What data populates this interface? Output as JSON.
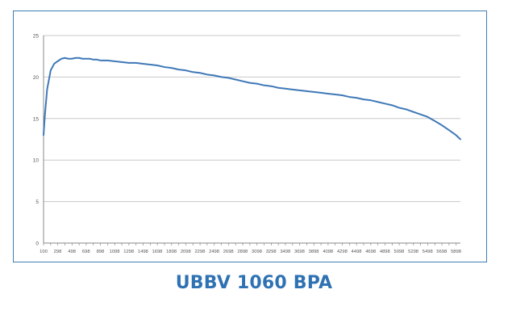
{
  "caption": "UBBV 1060 BPA",
  "chart_data": {
    "type": "line",
    "title": "",
    "xlabel": "",
    "ylabel": "",
    "ylim": [
      0,
      25
    ],
    "yticks": [
      0,
      5,
      10,
      15,
      20,
      25
    ],
    "grid": true,
    "line_color": "#3f78b8",
    "categories": [
      "100",
      "298",
      "498",
      "698",
      "898",
      "1098",
      "1298",
      "1498",
      "1698",
      "1898",
      "2098",
      "2298",
      "2498",
      "2698",
      "2898",
      "3098",
      "3298",
      "3498",
      "3698",
      "3898",
      "4098",
      "4298",
      "4498",
      "4698",
      "4898",
      "5098",
      "5298",
      "5498",
      "5698",
      "5898"
    ],
    "x": [
      100,
      120,
      150,
      200,
      250,
      298,
      350,
      400,
      450,
      498,
      550,
      600,
      650,
      698,
      750,
      800,
      850,
      898,
      950,
      1000,
      1098,
      1200,
      1298,
      1400,
      1498,
      1600,
      1698,
      1800,
      1898,
      2000,
      2098,
      2200,
      2298,
      2400,
      2498,
      2600,
      2698,
      2800,
      2898,
      3000,
      3098,
      3200,
      3298,
      3400,
      3498,
      3600,
      3698,
      3800,
      3898,
      4000,
      4098,
      4200,
      4298,
      4400,
      4498,
      4600,
      4698,
      4800,
      4898,
      5000,
      5098,
      5200,
      5298,
      5400,
      5498,
      5600,
      5698,
      5800,
      5898,
      5960
    ],
    "values": [
      13.0,
      15.5,
      18.5,
      20.8,
      21.6,
      21.9,
      22.2,
      22.3,
      22.2,
      22.2,
      22.3,
      22.3,
      22.2,
      22.2,
      22.2,
      22.1,
      22.1,
      22.0,
      22.0,
      22.0,
      21.9,
      21.8,
      21.7,
      21.7,
      21.6,
      21.5,
      21.4,
      21.2,
      21.1,
      20.9,
      20.8,
      20.6,
      20.5,
      20.3,
      20.2,
      20.0,
      19.9,
      19.7,
      19.5,
      19.3,
      19.2,
      19.0,
      18.9,
      18.7,
      18.6,
      18.5,
      18.4,
      18.3,
      18.2,
      18.1,
      18.0,
      17.9,
      17.8,
      17.6,
      17.5,
      17.3,
      17.2,
      17.0,
      16.8,
      16.6,
      16.3,
      16.1,
      15.8,
      15.5,
      15.2,
      14.7,
      14.2,
      13.6,
      13.0,
      12.5
    ]
  }
}
